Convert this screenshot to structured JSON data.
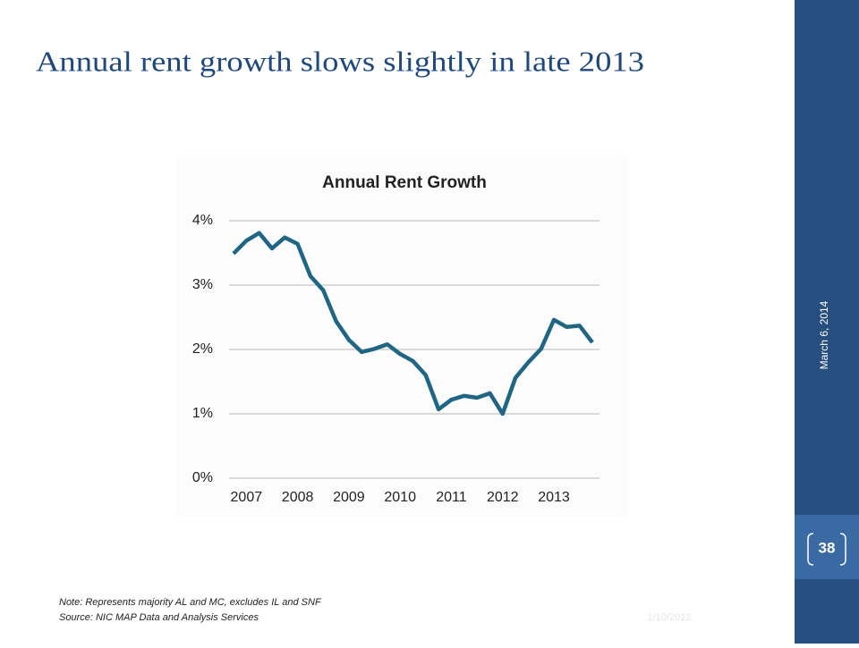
{
  "slide": {
    "title": "Annual rent growth slows slightly  in late 2013",
    "date": "March 6, 2014",
    "page_number": "38",
    "note": "Note:  Represents majority AL and MC, excludes IL and SNF",
    "source": "Source:  NIC MAP Data and Analysis Services",
    "footer_date": "1/10/2012"
  },
  "chart_data": {
    "type": "line",
    "title": "Annual Rent Growth",
    "categories": [
      null,
      "2007",
      null,
      null,
      null,
      "2008",
      null,
      null,
      null,
      "2009",
      null,
      null,
      null,
      "2010",
      null,
      null,
      null,
      "2011",
      null,
      null,
      null,
      "2012",
      null,
      null,
      null,
      "2013",
      null,
      null,
      null
    ],
    "series": [
      {
        "name": "Annual Rent Growth",
        "color": "#1f6584",
        "values": [
          3.49,
          3.69,
          3.81,
          3.57,
          3.74,
          3.64,
          3.14,
          2.92,
          2.44,
          2.15,
          1.96,
          2.01,
          2.08,
          1.93,
          1.82,
          1.6,
          1.07,
          1.22,
          1.28,
          1.25,
          1.32,
          1.0,
          1.56,
          1.8,
          2.01,
          2.46,
          2.35,
          2.37,
          2.11
        ]
      }
    ],
    "ylim": [
      0,
      4
    ],
    "yticks": [
      {
        "value": 0,
        "label": "0%"
      },
      {
        "value": 1,
        "label": "1%"
      },
      {
        "value": 2,
        "label": "2%"
      },
      {
        "value": 3,
        "label": "3%"
      },
      {
        "value": 4,
        "label": "4%"
      }
    ],
    "grid": true
  }
}
